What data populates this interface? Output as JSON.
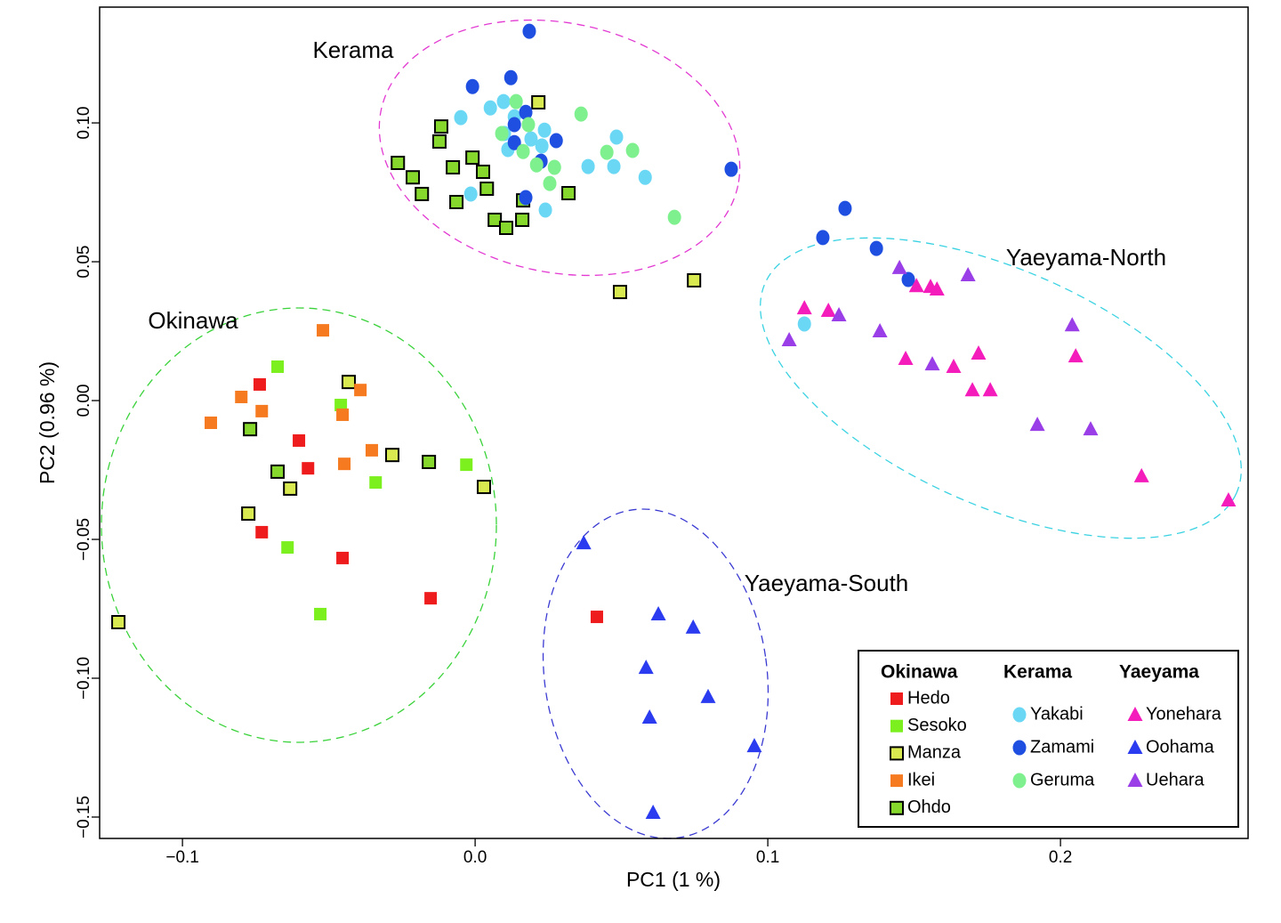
{
  "chart_data": {
    "type": "scatter",
    "xlabel": "PC1 (1 %)",
    "ylabel": "PC2 (0.96 %)",
    "xlim": [
      -0.1283,
      0.2641
    ],
    "ylim": [
      -0.1577,
      0.1417
    ],
    "xticks": [
      {
        "value": -0.1,
        "label": "−0.1"
      },
      {
        "value": 0,
        "label": "0.0"
      },
      0.1,
      0.2
    ],
    "yticks": [
      {
        "value": -0.15,
        "label": "−0.15"
      },
      {
        "value": -0.1,
        "label": "−0.10"
      },
      {
        "value": -0.05,
        "label": "−0.05"
      },
      {
        "value": 0,
        "label": "0.00"
      },
      0.05,
      {
        "value": 0.1,
        "label": "0.10"
      }
    ],
    "annotations": [
      "Kerama",
      "Okinawa",
      "Yaeyama-North",
      "Yaeyama-South"
    ],
    "legend_groups": [
      "Okinawa",
      "Kerama",
      "Yaeyama"
    ],
    "series": [
      {
        "name": "Hedo",
        "color": "#ee1c1c",
        "marker": "square",
        "x": [
          -0.0736,
          -0.0602,
          -0.0571,
          -0.0729,
          -0.0453,
          -0.0152,
          0.0416
        ],
        "values": [
          0.0058,
          -0.0144,
          -0.0244,
          -0.0474,
          -0.0567,
          -0.0712,
          -0.0779
        ]
      },
      {
        "name": "Sesoko",
        "color": "#7cf01e",
        "marker": "square",
        "x": [
          -0.0675,
          -0.0459,
          -0.034,
          -0.003,
          -0.0641,
          -0.0529
        ],
        "values": [
          0.0122,
          -0.0016,
          -0.0295,
          -0.0231,
          -0.0529,
          -0.0769
        ]
      },
      {
        "name": "Manza",
        "color": "#d8ea50",
        "edgecolor": "#000000",
        "marker": "square",
        "x": [
          -0.0432,
          -0.0283,
          0.003,
          -0.0775,
          -0.1219,
          0.0216,
          0.0495,
          0.0748,
          -0.0632
        ],
        "values": [
          0.0067,
          -0.0196,
          -0.0311,
          -0.0407,
          -0.0798,
          0.1074,
          0.0391,
          0.0433,
          -0.0317
        ]
      },
      {
        "name": "Ikei",
        "color": "#f57a20",
        "marker": "square",
        "x": [
          -0.052,
          -0.0799,
          -0.0729,
          -0.0903,
          -0.0392,
          -0.0453,
          -0.0447,
          -0.0353
        ],
        "values": [
          0.0253,
          0.0013,
          -0.0038,
          -0.008,
          0.0038,
          -0.0051,
          -0.0228,
          -0.0179
        ]
      },
      {
        "name": "Ohdo",
        "color": "#86d82c",
        "edgecolor": "#000000",
        "marker": "square",
        "x": [
          -0.0769,
          -0.0675,
          -0.0158,
          -0.0116,
          -0.0122,
          -0.0264,
          -0.0213,
          -0.0182,
          -0.0076,
          -0.0064,
          -0.0009,
          0.0027,
          0.004,
          0.0067,
          0.0106,
          0.0161,
          0.0164,
          0.0319
        ],
        "values": [
          -0.0103,
          -0.0256,
          -0.0221,
          0.0987,
          0.0933,
          0.0856,
          0.0804,
          0.0744,
          0.084,
          0.0715,
          0.0875,
          0.0824,
          0.0763,
          0.0651,
          0.0622,
          0.0651,
          0.0721,
          0.0747
        ]
      },
      {
        "name": "Yakabi",
        "color": "#6ad8f5",
        "marker": "circle",
        "x": [
          -0.0049,
          0.0052,
          0.0097,
          0.0134,
          0.01,
          0.0191,
          0.0237,
          0.0112,
          0.0228,
          0.0386,
          0.0474,
          0.0483,
          0.0581,
          -0.0015,
          0.024,
          0.1125
        ],
        "values": [
          0.1019,
          0.1054,
          0.1077,
          0.1022,
          0.0962,
          0.0942,
          0.0974,
          0.0904,
          0.0917,
          0.0843,
          0.0843,
          0.0949,
          0.0804,
          0.0744,
          0.0686,
          0.0276
        ]
      },
      {
        "name": "Zamami",
        "color": "#1f4fe0",
        "marker": "circle",
        "x": [
          0.0185,
          0.0122,
          -0.0009,
          0.0173,
          0.0134,
          0.0134,
          0.0277,
          0.0225,
          0.0173,
          0.0875,
          0.1264,
          0.1188,
          0.1371,
          0.148
        ],
        "values": [
          0.133,
          0.1163,
          0.1131,
          0.1038,
          0.0994,
          0.0929,
          0.0936,
          0.0862,
          0.0731,
          0.0833,
          0.0692,
          0.0587,
          0.0548,
          0.0436
        ]
      },
      {
        "name": "Geruma",
        "color": "#7ef08e",
        "marker": "circle",
        "x": [
          0.014,
          0.0091,
          0.0182,
          0.0164,
          0.021,
          0.0271,
          0.0255,
          0.0362,
          0.045,
          0.0538,
          0.0681
        ],
        "values": [
          0.1077,
          0.0962,
          0.0994,
          0.0897,
          0.0849,
          0.084,
          0.0782,
          0.1032,
          0.0894,
          0.0901,
          0.066
        ]
      },
      {
        "name": "Yonehara",
        "color": "#f51cbc",
        "marker": "triangle",
        "x": [
          0.1125,
          0.1207,
          0.1508,
          0.1556,
          0.1578,
          0.1471,
          0.1635,
          0.172,
          0.1699,
          0.176,
          0.2052,
          0.2277,
          0.2574
        ],
        "values": [
          0.0333,
          0.0324,
          0.0413,
          0.041,
          0.0401,
          0.0151,
          0.0122,
          0.017,
          0.0038,
          0.0038,
          0.016,
          -0.0272,
          -0.0359
        ]
      },
      {
        "name": "Oohama",
        "color": "#2b3cf0",
        "marker": "triangle",
        "x": [
          0.0371,
          0.0626,
          0.0745,
          0.0584,
          0.0796,
          0.0596,
          0.0954,
          0.0608
        ],
        "values": [
          -0.0513,
          -0.0769,
          -0.0817,
          -0.0962,
          -0.1067,
          -0.1141,
          -0.1244,
          -0.1484
        ]
      },
      {
        "name": "Uehara",
        "color": "#9a3ee8",
        "marker": "triangle",
        "x": [
          0.1073,
          0.1243,
          0.145,
          0.1684,
          0.1383,
          0.1562,
          0.204,
          0.1921,
          0.2103
        ],
        "values": [
          0.0218,
          0.0308,
          0.0478,
          0.0452,
          0.025,
          0.0131,
          0.0272,
          -0.0087,
          -0.0103
        ]
      }
    ]
  }
}
